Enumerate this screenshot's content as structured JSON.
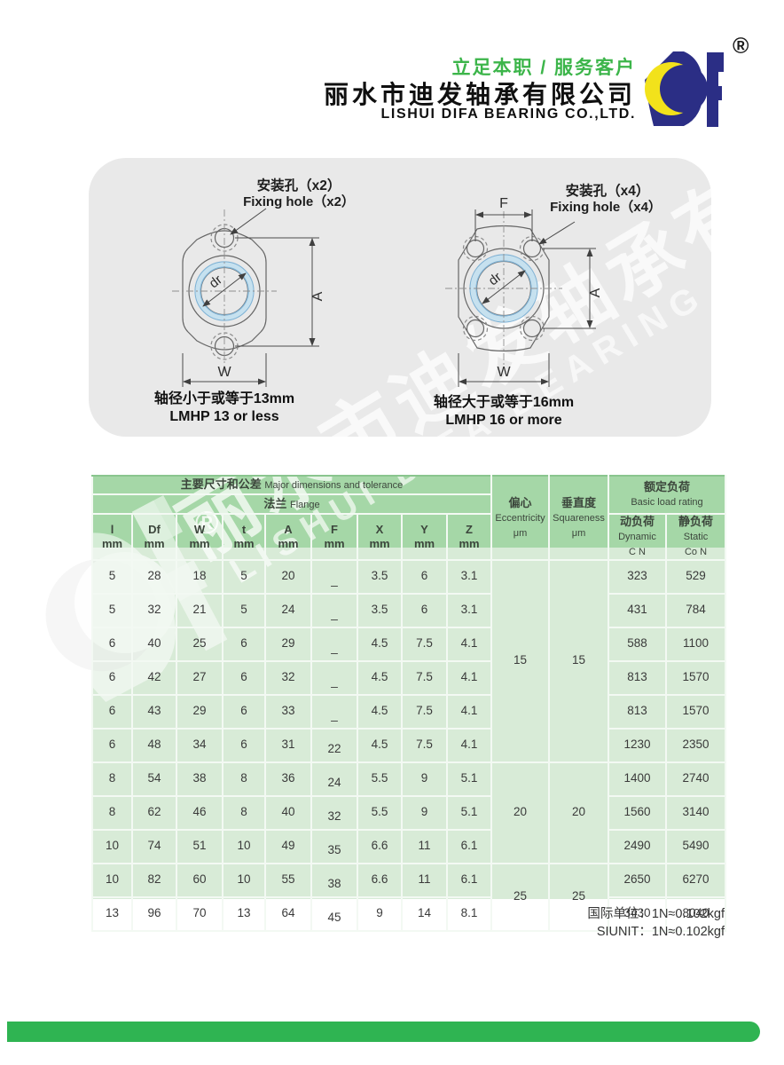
{
  "header": {
    "tagline": "立足本职 / 服务客户",
    "company_cn": "丽水市迪发轴承有限公司",
    "company_en": "LISHUI DIFA BEARING CO.,LTD.",
    "registered": "®",
    "logo_letters": "DF"
  },
  "diagrams": {
    "left": {
      "callout_cn": "安装孔（x2）",
      "callout_en": "Fixing hole（x2）",
      "dim_a": "A",
      "dim_w": "W",
      "dim_dr": "dr",
      "caption_cn": "轴径小于或等于13mm",
      "caption_en": "LMHP 13 or less"
    },
    "right": {
      "callout_cn": "安装孔（x4）",
      "callout_en": "Fixing hole（x4）",
      "dim_a": "A",
      "dim_w": "W",
      "dim_f": "F",
      "dim_dr": "dr",
      "caption_cn": "轴径大于或等于16mm",
      "caption_en": "LMHP 16 or more"
    }
  },
  "table": {
    "main_header_cn": "主要尺寸和公差",
    "main_header_en": "Major dimensions and tolerance",
    "flange_cn": "法兰",
    "flange_en": "Flange",
    "dim_columns": [
      {
        "name": "l",
        "unit": "mm"
      },
      {
        "name": "Df",
        "unit": "mm"
      },
      {
        "name": "W",
        "unit": "mm"
      },
      {
        "name": "t",
        "unit": "mm"
      },
      {
        "name": "A",
        "unit": "mm"
      },
      {
        "name": "F",
        "unit": "mm"
      },
      {
        "name": "X",
        "unit": "mm"
      },
      {
        "name": "Y",
        "unit": "mm"
      },
      {
        "name": "Z",
        "unit": "mm"
      }
    ],
    "eccentricity": {
      "cn": "偏心",
      "en": "Eccentricity",
      "unit": "μm"
    },
    "squareness": {
      "cn": "垂直度",
      "en": "Squareness",
      "unit": "μm"
    },
    "load_rating": {
      "cn": "额定负荷",
      "en": "Basic load rating"
    },
    "dynamic": {
      "cn": "动负荷",
      "en": "Dynamic",
      "symbol": "C N"
    },
    "static": {
      "cn": "静负荷",
      "en": "Static",
      "symbol": "Co N"
    },
    "rows": [
      {
        "l": "5",
        "Df": "28",
        "W": "18",
        "t": "5",
        "A": "20",
        "F": "_",
        "X": "3.5",
        "Y": "6",
        "Z": "3.1",
        "dynamic": "323",
        "static": "529"
      },
      {
        "l": "5",
        "Df": "32",
        "W": "21",
        "t": "5",
        "A": "24",
        "F": "_",
        "X": "3.5",
        "Y": "6",
        "Z": "3.1",
        "dynamic": "431",
        "static": "784"
      },
      {
        "l": "6",
        "Df": "40",
        "W": "25",
        "t": "6",
        "A": "29",
        "F": "_",
        "X": "4.5",
        "Y": "7.5",
        "Z": "4.1",
        "dynamic": "588",
        "static": "1100"
      },
      {
        "l": "6",
        "Df": "42",
        "W": "27",
        "t": "6",
        "A": "32",
        "F": "_",
        "X": "4.5",
        "Y": "7.5",
        "Z": "4.1",
        "dynamic": "813",
        "static": "1570"
      },
      {
        "l": "6",
        "Df": "43",
        "W": "29",
        "t": "6",
        "A": "33",
        "F": "_",
        "X": "4.5",
        "Y": "7.5",
        "Z": "4.1",
        "dynamic": "813",
        "static": "1570"
      },
      {
        "l": "6",
        "Df": "48",
        "W": "34",
        "t": "6",
        "A": "31",
        "F": "22",
        "X": "4.5",
        "Y": "7.5",
        "Z": "4.1",
        "dynamic": "1230",
        "static": "2350"
      },
      {
        "l": "8",
        "Df": "54",
        "W": "38",
        "t": "8",
        "A": "36",
        "F": "24",
        "X": "5.5",
        "Y": "9",
        "Z": "5.1",
        "dynamic": "1400",
        "static": "2740"
      },
      {
        "l": "8",
        "Df": "62",
        "W": "46",
        "t": "8",
        "A": "40",
        "F": "32",
        "X": "5.5",
        "Y": "9",
        "Z": "5.1",
        "dynamic": "1560",
        "static": "3140"
      },
      {
        "l": "10",
        "Df": "74",
        "W": "51",
        "t": "10",
        "A": "49",
        "F": "35",
        "X": "6.6",
        "Y": "11",
        "Z": "6.1",
        "dynamic": "2490",
        "static": "5490"
      },
      {
        "l": "10",
        "Df": "82",
        "W": "60",
        "t": "10",
        "A": "55",
        "F": "38",
        "X": "6.6",
        "Y": "11",
        "Z": "6.1",
        "dynamic": "2650",
        "static": "6270"
      },
      {
        "l": "13",
        "Df": "96",
        "W": "70",
        "t": "13",
        "A": "64",
        "F": "45",
        "X": "9",
        "Y": "14",
        "Z": "8.1",
        "dynamic": "3430",
        "static": "8040"
      }
    ],
    "groups": [
      {
        "rows": 6,
        "eccentricity": "15",
        "squareness": "15"
      },
      {
        "rows": 3,
        "eccentricity": "20",
        "squareness": "20"
      },
      {
        "rows": 2,
        "eccentricity": "25",
        "squareness": "25"
      }
    ]
  },
  "footer": {
    "line1": "国际单位：1N≈0.102kgf",
    "line2": "SIUNIT：1N≈0.102kgf"
  },
  "watermark": {
    "text_cn": "丽水市迪发轴承有限公司",
    "text_en": "LISHUI DIFA BEARING CO.,LTD.",
    "registered": "®"
  },
  "colors": {
    "accent_green": "#3cb54a",
    "table_header_green": "#a5d7a7",
    "table_body_green": "#d8ebd7",
    "logo_navy": "#2b2e85",
    "logo_yellow": "#f2e21b",
    "bottom_bar_green": "#2fb452"
  }
}
